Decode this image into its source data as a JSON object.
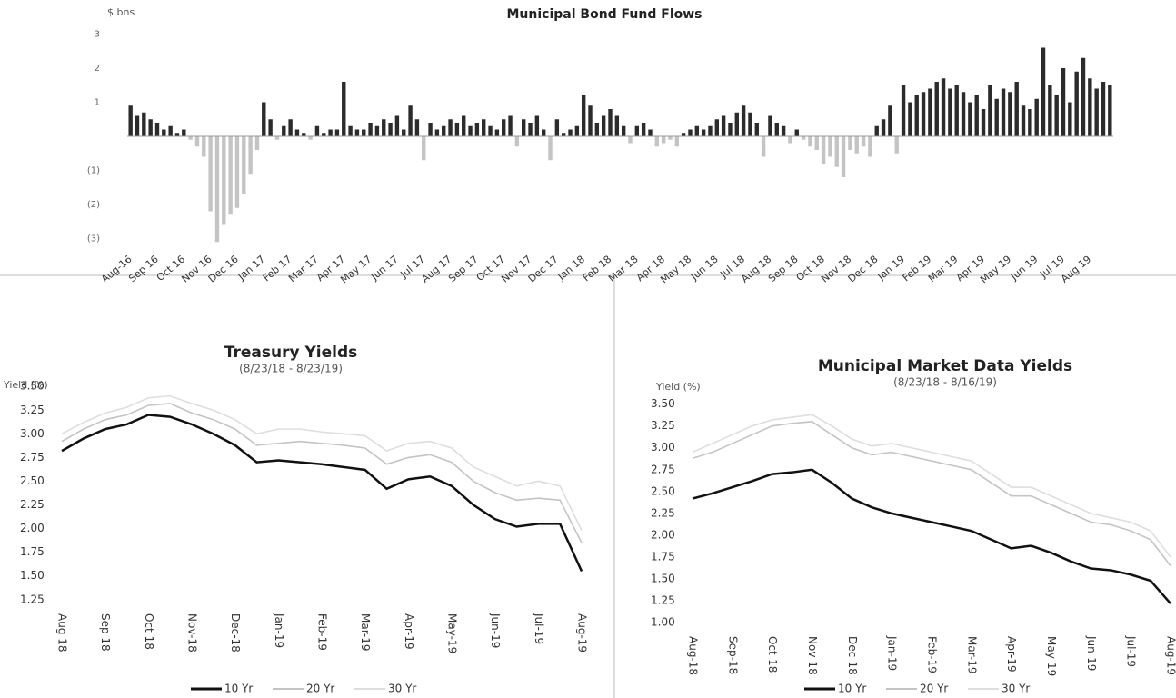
{
  "chart_data": [
    {
      "type": "bar",
      "title": "Municipal Bond Fund Flows",
      "y_label": "$ bns",
      "categories": [
        "Aug-16",
        null,
        null,
        null,
        "Sep 16",
        null,
        null,
        null,
        "Oct 16",
        null,
        null,
        null,
        "Nov 16",
        null,
        null,
        null,
        "Dec 16",
        null,
        null,
        null,
        "Jan 17",
        null,
        null,
        null,
        "Feb 17",
        null,
        null,
        null,
        "Mar 17",
        null,
        null,
        null,
        "Apr 17",
        null,
        null,
        null,
        "May 17",
        null,
        null,
        null,
        "Jun 17",
        null,
        null,
        null,
        "Jul 17",
        null,
        null,
        null,
        "Aug 17",
        null,
        null,
        null,
        "Sep 17",
        null,
        null,
        null,
        "Oct 17",
        null,
        null,
        null,
        "Nov 17",
        null,
        null,
        null,
        "Dec 17",
        null,
        null,
        null,
        "Jan 18",
        null,
        null,
        null,
        "Feb 18",
        null,
        null,
        null,
        "Mar 18",
        null,
        null,
        null,
        "Apr 18",
        null,
        null,
        null,
        "May 18",
        null,
        null,
        null,
        "Jun 18",
        null,
        null,
        null,
        "Jul 18",
        null,
        null,
        null,
        "Aug 18",
        null,
        null,
        null,
        "Sep 18",
        null,
        null,
        null,
        "Oct 18",
        null,
        null,
        null,
        "Nov 18",
        null,
        null,
        null,
        "Dec 18",
        null,
        null,
        null,
        "Jan 19",
        null,
        null,
        null,
        "Feb 19",
        null,
        null,
        null,
        "Mar 19",
        null,
        null,
        null,
        "Apr 19",
        null,
        null,
        null,
        "May 19",
        null,
        null,
        null,
        "Jun 19",
        null,
        null,
        null,
        "Jul 19",
        null,
        null,
        null,
        "Aug 19",
        null,
        null,
        null
      ],
      "values": [
        0.9,
        0.6,
        0.7,
        0.5,
        0.4,
        0.2,
        0.3,
        0.1,
        0.2,
        -0.1,
        -0.3,
        -0.6,
        -2.2,
        -3.1,
        -2.6,
        -2.3,
        -2.1,
        -1.7,
        -1.1,
        -0.4,
        1.0,
        0.5,
        -0.1,
        0.3,
        0.5,
        0.2,
        0.1,
        -0.1,
        0.3,
        0.1,
        0.2,
        0.2,
        1.6,
        0.3,
        0.2,
        0.2,
        0.4,
        0.3,
        0.5,
        0.4,
        0.6,
        0.2,
        0.9,
        0.5,
        -0.7,
        0.4,
        0.2,
        0.3,
        0.5,
        0.4,
        0.6,
        0.3,
        0.4,
        0.5,
        0.3,
        0.2,
        0.5,
        0.6,
        -0.3,
        0.5,
        0.4,
        0.6,
        0.2,
        -0.7,
        0.5,
        0.1,
        0.2,
        0.3,
        1.2,
        0.9,
        0.4,
        0.6,
        0.8,
        0.6,
        0.3,
        -0.2,
        0.3,
        0.4,
        0.2,
        -0.3,
        -0.2,
        -0.1,
        -0.3,
        0.1,
        0.2,
        0.3,
        0.2,
        0.3,
        0.5,
        0.6,
        0.4,
        0.7,
        0.9,
        0.7,
        0.4,
        -0.6,
        0.6,
        0.4,
        0.3,
        -0.2,
        0.2,
        -0.1,
        -0.3,
        -0.4,
        -0.8,
        -0.6,
        -0.9,
        -1.2,
        -0.4,
        -0.5,
        -0.3,
        -0.6,
        0.3,
        0.5,
        0.9,
        -0.5,
        1.5,
        1.0,
        1.2,
        1.3,
        1.4,
        1.6,
        1.7,
        1.4,
        1.5,
        1.3,
        1.0,
        1.2,
        0.8,
        1.5,
        1.1,
        1.4,
        1.3,
        1.6,
        0.9,
        0.8,
        1.1,
        2.6,
        1.5,
        1.2,
        2.0,
        1.0,
        1.9,
        2.3,
        1.7,
        1.4,
        1.6,
        1.5
      ],
      "color": "#2b2b2b",
      "negative_color": "#c4c4c4",
      "ylim": [
        -3.2,
        3.2
      ],
      "yticks": [
        3,
        2,
        1,
        {
          "value": -1,
          "label": "(1)"
        },
        {
          "value": -2,
          "label": "(2)"
        },
        {
          "value": -3,
          "label": "(3)"
        }
      ]
    },
    {
      "type": "line",
      "title": "Treasury Yields",
      "subtitle": "(8/23/18 - 8/23/19)",
      "y_label": "Yield (%)",
      "categories": [
        "Aug 18",
        null,
        "Sep 18",
        null,
        "Oct 18",
        null,
        "Nov-18",
        null,
        "Dec-18",
        null,
        "Jan-19",
        null,
        "Feb-19",
        null,
        "Mar-19",
        null,
        "Apr-19",
        null,
        "May-19",
        null,
        "Jun-19",
        null,
        "Jul-19",
        null,
        "Aug-19"
      ],
      "series": [
        {
          "name": "10 Yr",
          "color": "#111111",
          "values": [
            2.82,
            2.95,
            3.05,
            3.1,
            3.2,
            3.18,
            3.1,
            3.0,
            2.88,
            2.7,
            2.72,
            2.7,
            2.68,
            2.65,
            2.62,
            2.42,
            2.52,
            2.55,
            2.45,
            2.25,
            2.1,
            2.02,
            2.05,
            2.05,
            1.55
          ]
        },
        {
          "name": "20 Yr",
          "color": "#c4c4c4",
          "values": [
            2.92,
            3.05,
            3.15,
            3.2,
            3.3,
            3.32,
            3.22,
            3.15,
            3.05,
            2.88,
            2.9,
            2.92,
            2.9,
            2.88,
            2.85,
            2.68,
            2.75,
            2.78,
            2.7,
            2.5,
            2.38,
            2.3,
            2.32,
            2.3,
            1.85
          ]
        },
        {
          "name": "30 Yr",
          "color": "#dedede",
          "values": [
            3.0,
            3.12,
            3.22,
            3.28,
            3.38,
            3.4,
            3.32,
            3.25,
            3.15,
            3.0,
            3.05,
            3.05,
            3.02,
            3.0,
            2.98,
            2.82,
            2.9,
            2.92,
            2.85,
            2.65,
            2.55,
            2.45,
            2.5,
            2.45,
            1.98
          ]
        }
      ],
      "ylim": [
        1.2,
        3.55
      ],
      "yticks": [
        {
          "value": 3.5,
          "label": "3.50"
        },
        3.25,
        {
          "value": 3.0,
          "label": "3.00"
        },
        2.75,
        {
          "value": 2.5,
          "label": "2.50"
        },
        2.25,
        {
          "value": 2.0,
          "label": "2.00"
        },
        1.75,
        {
          "value": 1.5,
          "label": "1.50"
        },
        1.25
      ]
    },
    {
      "type": "line",
      "title": "Municipal Market Data Yields",
      "subtitle": "(8/23/18 - 8/16/19)",
      "y_label": "Yield (%)",
      "categories": [
        "Aug-18",
        null,
        "Sep-18",
        null,
        "Oct-18",
        null,
        "Nov-18",
        null,
        "Dec-18",
        null,
        "Jan-19",
        null,
        "Feb-19",
        null,
        "Mar-19",
        null,
        "Apr-19",
        null,
        "May-19",
        null,
        "Jun-19",
        null,
        "Jul-19",
        null,
        "Aug-19"
      ],
      "series": [
        {
          "name": "10 Yr",
          "color": "#111111",
          "values": [
            2.42,
            2.48,
            2.55,
            2.62,
            2.7,
            2.72,
            2.75,
            2.6,
            2.42,
            2.32,
            2.25,
            2.2,
            2.15,
            2.1,
            2.05,
            1.95,
            1.85,
            1.88,
            1.8,
            1.7,
            1.62,
            1.6,
            1.55,
            1.48,
            1.22
          ]
        },
        {
          "name": "20 Yr",
          "color": "#c4c4c4",
          "values": [
            2.88,
            2.95,
            3.05,
            3.15,
            3.25,
            3.28,
            3.3,
            3.15,
            3.0,
            2.92,
            2.95,
            2.9,
            2.85,
            2.8,
            2.75,
            2.6,
            2.45,
            2.45,
            2.35,
            2.25,
            2.15,
            2.12,
            2.05,
            1.95,
            1.65
          ]
        },
        {
          "name": "30 Yr",
          "color": "#dedede",
          "values": [
            2.95,
            3.05,
            3.15,
            3.25,
            3.32,
            3.35,
            3.38,
            3.25,
            3.1,
            3.02,
            3.05,
            3.0,
            2.95,
            2.9,
            2.85,
            2.7,
            2.55,
            2.55,
            2.45,
            2.35,
            2.25,
            2.2,
            2.15,
            2.05,
            1.75
          ]
        }
      ],
      "ylim": [
        0.95,
        3.6
      ],
      "yticks": [
        {
          "value": 3.5,
          "label": "3.50"
        },
        3.25,
        {
          "value": 3.0,
          "label": "3.00"
        },
        2.75,
        {
          "value": 2.5,
          "label": "2.50"
        },
        2.25,
        {
          "value": 2.0,
          "label": "2.00"
        },
        1.75,
        {
          "value": 1.5,
          "label": "1.50"
        },
        1.25,
        {
          "value": 1.0,
          "label": "1.00"
        }
      ]
    }
  ]
}
